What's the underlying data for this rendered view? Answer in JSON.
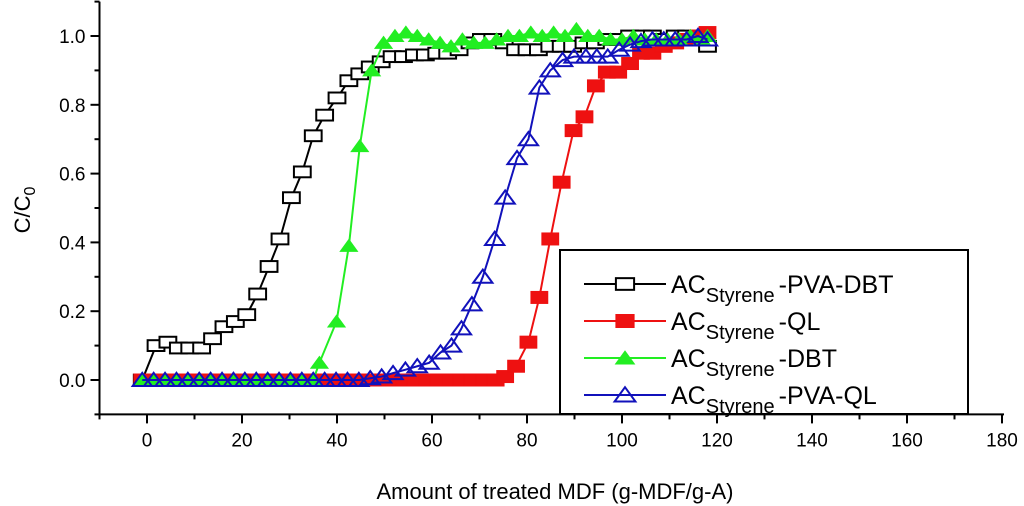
{
  "chart_data": {
    "type": "line",
    "title": "",
    "xlabel": "Amount of treated MDF (g-MDF/g-A)",
    "ylabel": {
      "main": "C/C",
      "sub": "0"
    },
    "xlim": [
      -10,
      180
    ],
    "ylim": [
      -0.1,
      1.1
    ],
    "x_ticks": [
      "0",
      "20",
      "40",
      "60",
      "80",
      "100",
      "120",
      "140",
      "160",
      "180"
    ],
    "y_ticks": [
      "0.0",
      "0.2",
      "0.4",
      "0.6",
      "0.8",
      "1.0"
    ],
    "grid": false,
    "legend_position": "bottom-right",
    "series": [
      {
        "name": {
          "prefix": "AC",
          "sub": "Styrene",
          "suffix": "-PVA-DBT"
        },
        "color": "#000000",
        "marker": "open-square",
        "points": [
          [
            -1,
            0
          ],
          [
            1.9,
            0.1
          ],
          [
            4.4,
            0.11
          ],
          [
            6.6,
            0.093
          ],
          [
            9,
            0.093
          ],
          [
            11.5,
            0.093
          ],
          [
            13.8,
            0.12
          ],
          [
            16.2,
            0.155
          ],
          [
            18.6,
            0.17
          ],
          [
            21,
            0.19
          ],
          [
            23.3,
            0.25
          ],
          [
            25.7,
            0.33
          ],
          [
            28,
            0.41
          ],
          [
            30.4,
            0.53
          ],
          [
            32.7,
            0.605
          ],
          [
            35,
            0.71
          ],
          [
            37.4,
            0.77
          ],
          [
            40,
            0.82
          ],
          [
            42.5,
            0.87
          ],
          [
            44.8,
            0.89
          ],
          [
            47,
            0.91
          ],
          [
            49.3,
            0.925
          ],
          [
            51.6,
            0.94
          ],
          [
            54,
            0.94
          ],
          [
            56.3,
            0.945
          ],
          [
            58.6,
            0.945
          ],
          [
            61,
            0.95
          ],
          [
            63.3,
            0.95
          ],
          [
            65.7,
            0.96
          ],
          [
            68,
            0.98
          ],
          [
            70.4,
            0.99
          ],
          [
            72.8,
            0.99
          ],
          [
            75.2,
            0.98
          ],
          [
            77.6,
            0.96
          ],
          [
            80,
            0.96
          ],
          [
            82.4,
            0.96
          ],
          [
            84.8,
            0.97
          ],
          [
            87.2,
            0.97
          ],
          [
            89.6,
            0.97
          ],
          [
            92,
            0.98
          ],
          [
            94.4,
            0.98
          ],
          [
            96.8,
            0.99
          ],
          [
            99.2,
            0.99
          ],
          [
            101.6,
            1.0
          ],
          [
            104,
            1.0
          ],
          [
            106.4,
            1.0
          ],
          [
            108.8,
            0.99
          ],
          [
            111.2,
            1.0
          ],
          [
            113.6,
            1.0
          ],
          [
            116,
            1.0
          ],
          [
            118,
            0.97
          ]
        ]
      },
      {
        "name": {
          "prefix": "AC",
          "sub": "Styrene",
          "suffix": "-QL"
        },
        "color": "#ee1111",
        "marker": "filled-square",
        "points": [
          [
            -1,
            0
          ],
          [
            1.4,
            0
          ],
          [
            3.8,
            0
          ],
          [
            6.2,
            0
          ],
          [
            8.6,
            0
          ],
          [
            11,
            0
          ],
          [
            13.4,
            0
          ],
          [
            15.8,
            0
          ],
          [
            18.2,
            0
          ],
          [
            20.6,
            0
          ],
          [
            23,
            0
          ],
          [
            25.4,
            0
          ],
          [
            27.8,
            0
          ],
          [
            30.2,
            0
          ],
          [
            32.6,
            0
          ],
          [
            35,
            0
          ],
          [
            37.4,
            0
          ],
          [
            39.8,
            0
          ],
          [
            42.2,
            0
          ],
          [
            44.6,
            0
          ],
          [
            47,
            0
          ],
          [
            49.4,
            0
          ],
          [
            51.8,
            0
          ],
          [
            54.2,
            0
          ],
          [
            56.6,
            0
          ],
          [
            59,
            0
          ],
          [
            61.4,
            0
          ],
          [
            63.8,
            0
          ],
          [
            66.2,
            0
          ],
          [
            68.6,
            0
          ],
          [
            71,
            0
          ],
          [
            73.4,
            0
          ],
          [
            75.4,
            0.01
          ],
          [
            77.7,
            0.04
          ],
          [
            80.3,
            0.11
          ],
          [
            82.6,
            0.24
          ],
          [
            84.9,
            0.41
          ],
          [
            87.3,
            0.575
          ],
          [
            89.8,
            0.725
          ],
          [
            92.1,
            0.765
          ],
          [
            94.5,
            0.855
          ],
          [
            96.8,
            0.895
          ],
          [
            99.2,
            0.895
          ],
          [
            101.7,
            0.92
          ],
          [
            104,
            0.95
          ],
          [
            106.4,
            0.95
          ],
          [
            108.8,
            0.97
          ],
          [
            111.2,
            0.98
          ],
          [
            113.6,
            0.99
          ],
          [
            116,
            1.0
          ],
          [
            118,
            1.01
          ]
        ]
      },
      {
        "name": {
          "prefix": "AC",
          "sub": "Styrene",
          "suffix": "-DBT"
        },
        "color": "#22ee22",
        "marker": "filled-triangle",
        "points": [
          [
            -1,
            0
          ],
          [
            1.4,
            0
          ],
          [
            3.8,
            0
          ],
          [
            6.2,
            0
          ],
          [
            8.6,
            0
          ],
          [
            11,
            0
          ],
          [
            13.4,
            0
          ],
          [
            15.8,
            0
          ],
          [
            18.2,
            0
          ],
          [
            20.6,
            0
          ],
          [
            23,
            0
          ],
          [
            25.4,
            0
          ],
          [
            27.8,
            0
          ],
          [
            30.2,
            0
          ],
          [
            32.6,
            0
          ],
          [
            35,
            0
          ],
          [
            36.3,
            0.05
          ],
          [
            39.9,
            0.17
          ],
          [
            42.5,
            0.39
          ],
          [
            44.8,
            0.68
          ],
          [
            47.3,
            0.9
          ],
          [
            49.8,
            0.98
          ],
          [
            52.2,
            1.0
          ],
          [
            54.5,
            1.01
          ],
          [
            56.9,
            1.0
          ],
          [
            59.3,
            0.99
          ],
          [
            61.7,
            0.98
          ],
          [
            64,
            0.97
          ],
          [
            66.4,
            0.99
          ],
          [
            68.8,
            0.98
          ],
          [
            71.2,
            0.98
          ],
          [
            73.6,
            0.99
          ],
          [
            76,
            1.0
          ],
          [
            78.4,
            1.0
          ],
          [
            80.8,
            1.01
          ],
          [
            83.2,
            1.0
          ],
          [
            85.6,
            1.01
          ],
          [
            88,
            1.0
          ],
          [
            90.4,
            1.02
          ],
          [
            92.8,
            1.0
          ],
          [
            95.2,
            1.0
          ],
          [
            97.6,
            0.99
          ],
          [
            100,
            0.99
          ],
          [
            102.4,
            1.0
          ],
          [
            104.8,
            0.99
          ],
          [
            107.2,
            0.99
          ],
          [
            109.6,
            0.99
          ],
          [
            112,
            0.99
          ],
          [
            114.4,
            1.0
          ],
          [
            116.8,
            0.99
          ],
          [
            118,
            1.0
          ]
        ]
      },
      {
        "name": {
          "prefix": "AC",
          "sub": "Styrene",
          "suffix": "-PVA-QL"
        },
        "color": "#1111bb",
        "marker": "open-triangle",
        "points": [
          [
            -1,
            0
          ],
          [
            1.4,
            0
          ],
          [
            3.8,
            0
          ],
          [
            6.2,
            0
          ],
          [
            8.6,
            0
          ],
          [
            11,
            0
          ],
          [
            13.4,
            0
          ],
          [
            15.8,
            0
          ],
          [
            18.2,
            0
          ],
          [
            20.6,
            0
          ],
          [
            23,
            0
          ],
          [
            25.4,
            0
          ],
          [
            27.8,
            0
          ],
          [
            30.2,
            0
          ],
          [
            32.6,
            0
          ],
          [
            35,
            0
          ],
          [
            37.4,
            0
          ],
          [
            39.8,
            0
          ],
          [
            42.2,
            0
          ],
          [
            44.6,
            0
          ],
          [
            47,
            0.005
          ],
          [
            49.4,
            0.01
          ],
          [
            51.8,
            0.02
          ],
          [
            54.4,
            0.03
          ],
          [
            56.9,
            0.04
          ],
          [
            59.4,
            0.05
          ],
          [
            61.8,
            0.08
          ],
          [
            64.1,
            0.1
          ],
          [
            66.2,
            0.15
          ],
          [
            68.4,
            0.22
          ],
          [
            70.7,
            0.3
          ],
          [
            73.2,
            0.41
          ],
          [
            75.4,
            0.53
          ],
          [
            77.9,
            0.645
          ],
          [
            80.3,
            0.7
          ],
          [
            82.6,
            0.85
          ],
          [
            84.9,
            0.9
          ],
          [
            87.5,
            0.93
          ],
          [
            89.9,
            0.94
          ],
          [
            92.4,
            0.94
          ],
          [
            94.7,
            0.94
          ],
          [
            97,
            0.94
          ],
          [
            99.4,
            0.96
          ],
          [
            101.7,
            0.975
          ],
          [
            104,
            0.985
          ],
          [
            106.4,
            0.99
          ],
          [
            108.8,
            0.99
          ],
          [
            111.2,
            0.99
          ],
          [
            113.6,
            0.99
          ],
          [
            116,
            1.0
          ],
          [
            118,
            0.99
          ]
        ]
      }
    ]
  }
}
